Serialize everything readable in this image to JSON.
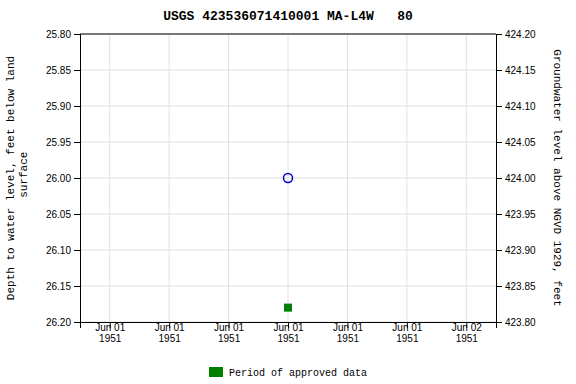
{
  "chart_data": {
    "type": "scatter",
    "title": "USGS 423536071410001 MA-L4W   80",
    "y_label": "Depth to water level, feet below land\n surface",
    "y2_label": "Groundwater level above NGVD 1929, feet",
    "categories": [
      "Jun 01\n1951",
      "Jun 01\n1951",
      "Jun 01\n1951",
      "Jun 01\n1951",
      "Jun 01\n1951",
      "Jun 01\n1951",
      "Jun 02\n1951"
    ],
    "series": [
      {
        "color": "#0000cc",
        "marker": "open-circle",
        "values": [
          null,
          null,
          null,
          26.0,
          null,
          null,
          null
        ]
      },
      {
        "name": "Period of approved data",
        "color": "#008000",
        "marker": "square",
        "values": [
          null,
          null,
          null,
          26.18,
          null,
          null,
          null
        ]
      }
    ],
    "ylim": [
      26.2,
      25.8
    ],
    "yticks": [
      {
        "value": 25.8,
        "label": "25.80"
      },
      {
        "value": 25.85,
        "label": "25.85"
      },
      {
        "value": 25.9,
        "label": "25.90"
      },
      {
        "value": 25.95,
        "label": "25.95"
      },
      {
        "value": 26.0,
        "label": "26.00"
      },
      {
        "value": 26.05,
        "label": "26.05"
      },
      {
        "value": 26.1,
        "label": "26.10"
      },
      {
        "value": 26.15,
        "label": "26.15"
      },
      {
        "value": 26.2,
        "label": "26.20"
      }
    ],
    "y2lim": [
      423.8,
      424.2
    ],
    "y2ticks": [
      {
        "value": 424.2,
        "label": "424.20"
      },
      {
        "value": 424.15,
        "label": "424.15"
      },
      {
        "value": 424.1,
        "label": "424.10"
      },
      {
        "value": 424.05,
        "label": "424.05"
      },
      {
        "value": 424.0,
        "label": "424.00"
      },
      {
        "value": 423.95,
        "label": "423.95"
      },
      {
        "value": 423.9,
        "label": "423.90"
      },
      {
        "value": 423.85,
        "label": "423.85"
      },
      {
        "value": 423.8,
        "label": "423.80"
      }
    ],
    "grid": true,
    "legend": "bottom"
  }
}
